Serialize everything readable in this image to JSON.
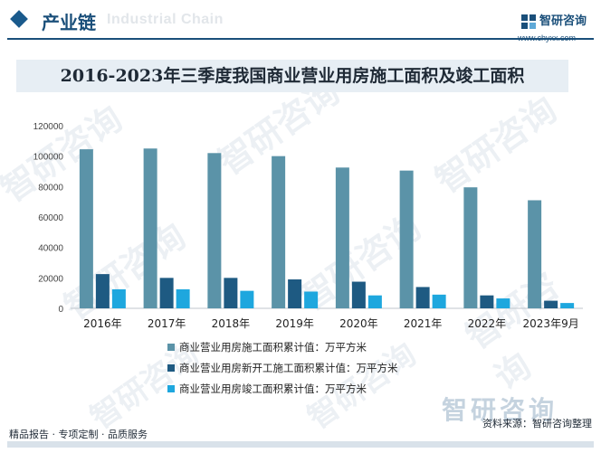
{
  "header": {
    "section_title": "产业链",
    "ghost_text": "Industrial Chain",
    "brand_name": "智研咨询",
    "brand_url": "www.chyxx.com"
  },
  "footer": {
    "services": "精品报告 · 专项定制 · 品质服务",
    "source": "资料来源：智研咨询整理",
    "brand_mark": "智研咨询"
  },
  "chart_data": {
    "type": "bar",
    "title": "2016-2023年三季度我国商业营业用房施工面积及竣工面积",
    "categories": [
      "2016年",
      "2017年",
      "2018年",
      "2019年",
      "2020年",
      "2021年",
      "2022年",
      "2023年9月"
    ],
    "y_ticks": [
      "0",
      "20000",
      "40000",
      "60000",
      "80000",
      "100000",
      "120000"
    ],
    "ylim": [
      0,
      120000
    ],
    "grid": false,
    "legend_position": "bottom",
    "series": [
      {
        "name": "商业营业用房施工面积累计值：万平方米",
        "color": "#5b93a8",
        "values": [
          104500,
          105000,
          102000,
          100000,
          92500,
          90500,
          79500,
          71000
        ]
      },
      {
        "name": "商业营业用房新开工施工面积累计值：万平方米",
        "color": "#1e5a82",
        "values": [
          22500,
          20000,
          20000,
          19000,
          17500,
          14000,
          8500,
          5000
        ]
      },
      {
        "name": "商业营业用房竣工面积累计值：万平方米",
        "color": "#1ea7de",
        "values": [
          12500,
          12500,
          11500,
          11000,
          8500,
          9000,
          6500,
          3500
        ]
      }
    ]
  }
}
